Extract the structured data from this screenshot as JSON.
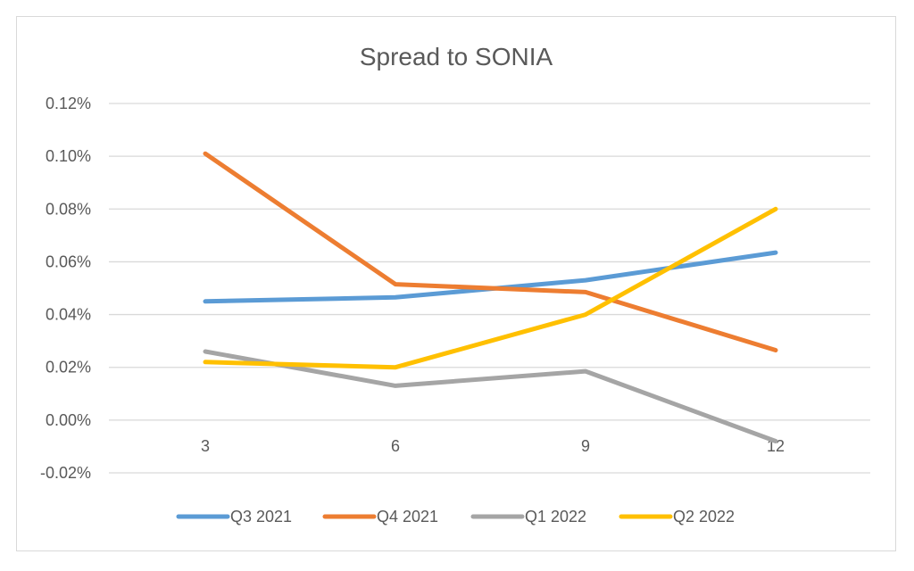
{
  "chart_data": {
    "type": "line",
    "title": "Spread to SONIA",
    "categories": [
      "3",
      "6",
      "9",
      "12"
    ],
    "y_tick_labels": [
      "0.12%",
      "0.10%",
      "0.08%",
      "0.06%",
      "0.04%",
      "0.02%",
      "0.00%",
      "-0.02%"
    ],
    "y_ticks": [
      0.12,
      0.1,
      0.08,
      0.06,
      0.04,
      0.02,
      0.0,
      -0.02
    ],
    "ylim": [
      -0.02,
      0.12
    ],
    "grid": true,
    "legend_position": "bottom",
    "series": [
      {
        "name": "Q3 2021",
        "color": "#5B9BD5",
        "values": [
          0.045,
          0.0465,
          0.053,
          0.0635
        ]
      },
      {
        "name": "Q4 2021",
        "color": "#ED7D31",
        "values": [
          0.101,
          0.0515,
          0.0485,
          0.0265
        ]
      },
      {
        "name": "Q1 2022",
        "color": "#A5A5A5",
        "values": [
          0.026,
          0.013,
          0.0185,
          -0.008
        ]
      },
      {
        "name": "Q2 2022",
        "color": "#FFC000",
        "values": [
          0.022,
          0.02,
          0.04,
          0.08
        ]
      }
    ]
  }
}
